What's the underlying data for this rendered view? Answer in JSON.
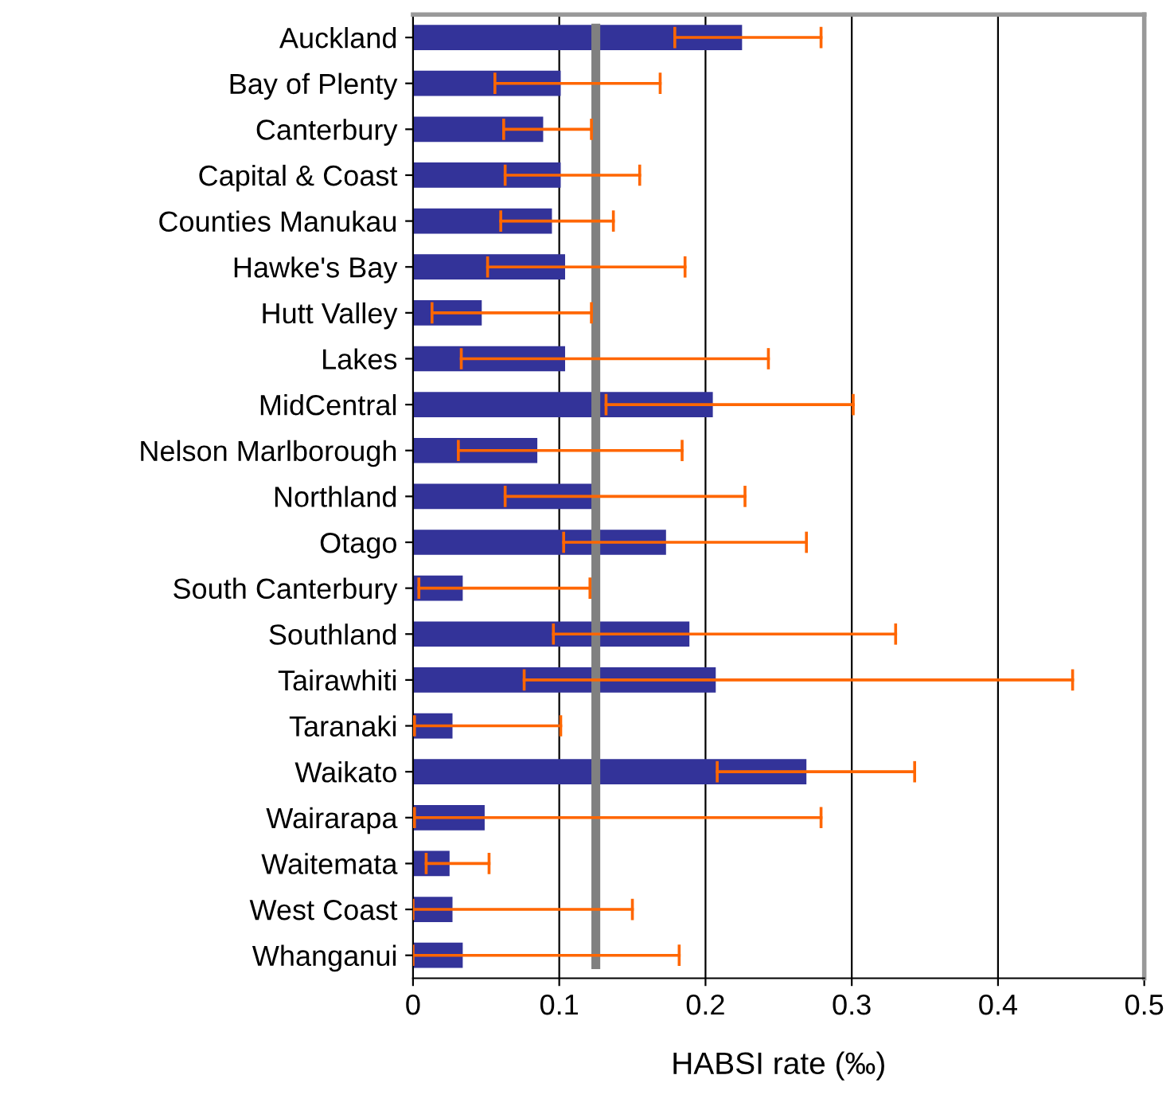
{
  "chart_data": {
    "type": "bar",
    "orientation": "horizontal",
    "xlabel": "HABSI rate (‰)",
    "categories": [
      "Auckland",
      "Bay of Plenty",
      "Canterbury",
      "Capital & Coast",
      "Counties Manukau",
      "Hawke's Bay",
      "Hutt Valley",
      "Lakes",
      "MidCentral",
      "Nelson Marlborough",
      "Northland",
      "Otago",
      "South Canterbury",
      "Southland",
      "Tairawhiti",
      "Taranaki",
      "Waikato",
      "Wairarapa",
      "Waitemata",
      "West Coast",
      "Whanganui"
    ],
    "series": [
      {
        "color": "#333399",
        "values": [
          0.225,
          0.101,
          0.089,
          0.101,
          0.095,
          0.104,
          0.047,
          0.104,
          0.205,
          0.085,
          0.123,
          0.173,
          0.034,
          0.189,
          0.207,
          0.027,
          0.269,
          0.049,
          0.025,
          0.027,
          0.034
        ],
        "errors": [
          [
            0.179,
            0.279
          ],
          [
            0.056,
            0.169
          ],
          [
            0.062,
            0.122
          ],
          [
            0.063,
            0.155
          ],
          [
            0.06,
            0.137
          ],
          [
            0.051,
            0.186
          ],
          [
            0.013,
            0.122
          ],
          [
            0.033,
            0.243
          ],
          [
            0.132,
            0.301
          ],
          [
            0.031,
            0.184
          ],
          [
            0.063,
            0.227
          ],
          [
            0.103,
            0.269
          ],
          [
            0.004,
            0.121
          ],
          [
            0.096,
            0.33
          ],
          [
            0.076,
            0.451
          ],
          [
            0.001,
            0.101
          ],
          [
            0.208,
            0.343
          ],
          [
            0.001,
            0.279
          ],
          [
            0.009,
            0.052
          ],
          [
            0.0,
            0.15
          ],
          [
            0.0,
            0.182
          ]
        ]
      }
    ],
    "xlim": [
      0,
      0.5
    ],
    "xticks": [
      0,
      0.1,
      0.2,
      0.3,
      0.4,
      0.5
    ],
    "ref_lines": [
      {
        "axis": "x",
        "value": 0.125,
        "label": null,
        "color": "#808080",
        "line_style": "solid"
      }
    ],
    "grid": "x",
    "legend": false
  }
}
